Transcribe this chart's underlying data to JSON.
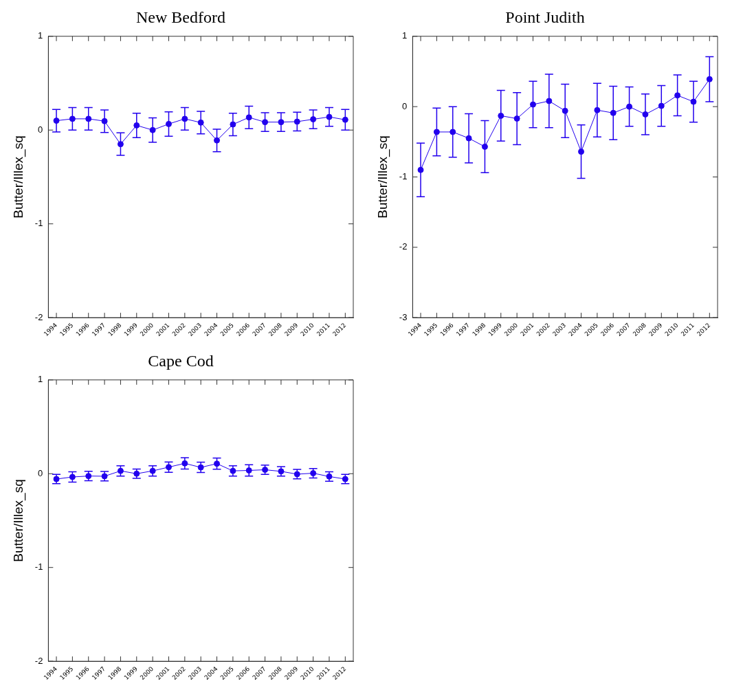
{
  "chart_data": [
    {
      "type": "line",
      "title": "New Bedford",
      "ylabel": "Butter/Illex_sq",
      "categories": [
        "1994",
        "1995",
        "1996",
        "1997",
        "1998",
        "1999",
        "2000",
        "2001",
        "2002",
        "2003",
        "2004",
        "2005",
        "2006",
        "2007",
        "2008",
        "2009",
        "2010",
        "2011",
        "2012"
      ],
      "series": [
        {
          "color": "#2200ee",
          "values": [
            0.1,
            0.12,
            0.12,
            0.095,
            -0.15,
            0.05,
            0.0,
            0.065,
            0.12,
            0.08,
            -0.11,
            0.06,
            0.135,
            0.085,
            0.085,
            0.09,
            0.115,
            0.14,
            0.11
          ],
          "errors": [
            0.12,
            0.12,
            0.12,
            0.12,
            0.12,
            0.13,
            0.13,
            0.13,
            0.12,
            0.12,
            0.12,
            0.12,
            0.12,
            0.1,
            0.1,
            0.1,
            0.1,
            0.1,
            0.11
          ]
        }
      ],
      "ylim": [
        -2,
        1
      ],
      "yticks": [
        -2,
        -1,
        0,
        1
      ],
      "marker": "circle",
      "line_style": "solid",
      "grid": false,
      "legend": false
    },
    {
      "type": "line",
      "title": "Point Judith",
      "ylabel": "Butter/Illex_sq",
      "categories": [
        "1994",
        "1995",
        "1996",
        "1997",
        "1998",
        "1999",
        "2000",
        "2001",
        "2002",
        "2003",
        "2004",
        "2005",
        "2006",
        "2007",
        "2008",
        "2009",
        "2010",
        "2011",
        "2012"
      ],
      "series": [
        {
          "color": "#2200ee",
          "values": [
            -0.9,
            -0.36,
            -0.36,
            -0.45,
            -0.57,
            -0.13,
            -0.17,
            0.03,
            0.08,
            -0.06,
            -0.64,
            -0.05,
            -0.09,
            0.0,
            -0.11,
            0.01,
            0.16,
            0.07,
            0.39
          ],
          "errors": [
            0.38,
            0.34,
            0.36,
            0.35,
            0.37,
            0.36,
            0.37,
            0.33,
            0.38,
            0.38,
            0.38,
            0.38,
            0.38,
            0.28,
            0.29,
            0.29,
            0.29,
            0.29,
            0.32
          ]
        }
      ],
      "ylim": [
        -3,
        1
      ],
      "yticks": [
        -3,
        -2,
        -1,
        0,
        1
      ],
      "marker": "circle",
      "line_style": "solid",
      "grid": false,
      "legend": false
    },
    {
      "type": "line",
      "title": "Cape Cod",
      "ylabel": "Butter/Illex_sq",
      "categories": [
        "1994",
        "1995",
        "1996",
        "1997",
        "1998",
        "1999",
        "2000",
        "2001",
        "2002",
        "2003",
        "2004",
        "2005",
        "2006",
        "2007",
        "2008",
        "2009",
        "2010",
        "2011",
        "2012"
      ],
      "series": [
        {
          "color": "#2200ee",
          "values": [
            -0.057,
            -0.035,
            -0.025,
            -0.027,
            0.03,
            0.0,
            0.03,
            0.07,
            0.11,
            0.067,
            0.107,
            0.03,
            0.035,
            0.042,
            0.025,
            -0.005,
            0.005,
            -0.03,
            -0.057
          ],
          "errors": [
            0.05,
            0.055,
            0.05,
            0.05,
            0.055,
            0.05,
            0.055,
            0.055,
            0.06,
            0.055,
            0.06,
            0.055,
            0.06,
            0.05,
            0.05,
            0.05,
            0.05,
            0.05,
            0.05
          ]
        }
      ],
      "ylim": [
        -2,
        1
      ],
      "yticks": [
        -2,
        -1,
        0,
        1
      ],
      "marker": "circle",
      "line_style": "solid",
      "grid": false,
      "legend": false
    }
  ]
}
